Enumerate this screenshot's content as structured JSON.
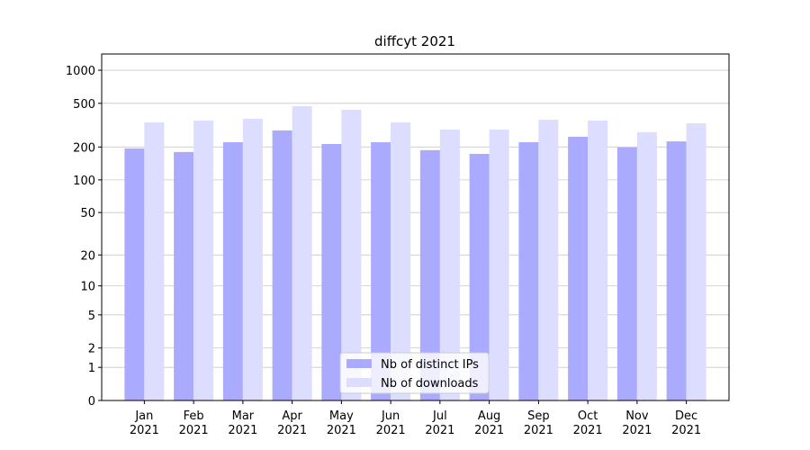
{
  "chart_data": {
    "type": "bar",
    "title": "diffcyt 2021",
    "categories": [
      "Jan\n2021",
      "Feb\n2021",
      "Mar\n2021",
      "Apr\n2021",
      "May\n2021",
      "Jun\n2021",
      "Jul\n2021",
      "Aug\n2021",
      "Sep\n2021",
      "Oct\n2021",
      "Nov\n2021",
      "Dec\n2021"
    ],
    "series": [
      {
        "name": "Nb of distinct IPs",
        "color": "#aaaaff",
        "values": [
          194,
          180,
          221,
          283,
          213,
          221,
          187,
          173,
          221,
          248,
          198,
          225
        ]
      },
      {
        "name": "Nb of downloads",
        "color": "#ddddff",
        "values": [
          335,
          348,
          361,
          471,
          437,
          335,
          288,
          288,
          354,
          348,
          273,
          329
        ]
      }
    ],
    "yscale": "log1p",
    "ylim": [
      0,
      1405
    ],
    "yticks": [
      0,
      1,
      2,
      5,
      10,
      20,
      50,
      100,
      200,
      500,
      1000
    ],
    "grid": true,
    "legend": "lower center"
  }
}
